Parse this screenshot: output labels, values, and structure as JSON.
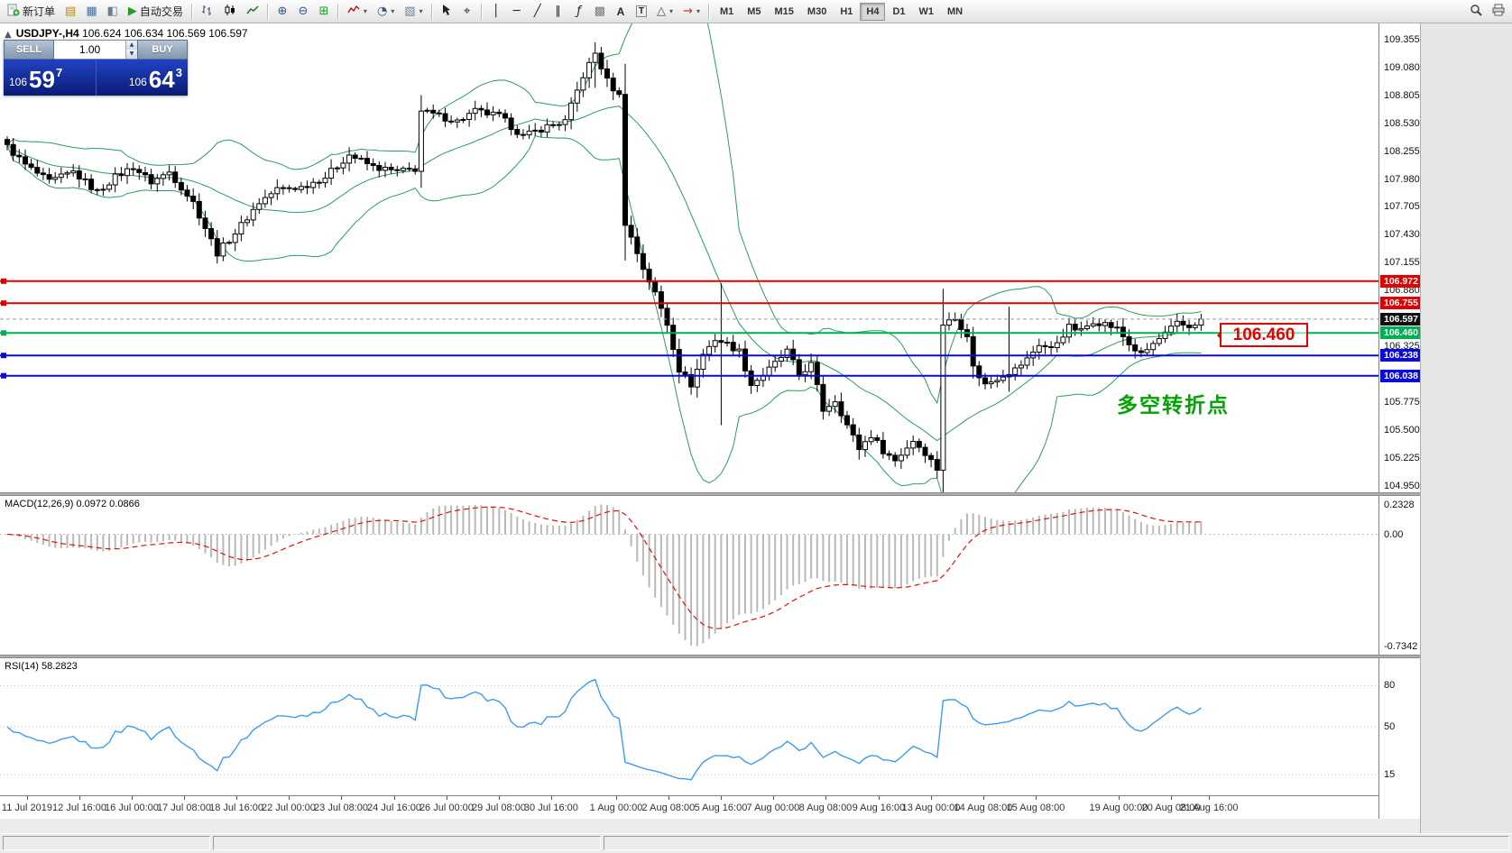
{
  "toolbar": {
    "new_order_label": "新订单",
    "autotrade_label": "自动交易",
    "text_tool_label": "A",
    "text_label_tool": "T",
    "timeframes": [
      "M1",
      "M5",
      "M15",
      "M30",
      "H1",
      "H4",
      "D1",
      "W1",
      "MN"
    ],
    "active_timeframe": "H4",
    "icons": {
      "market_watch": "▤",
      "chart_window": "▦",
      "navigator": "◧",
      "autoplay": "▶",
      "zoom_in": "⊕",
      "zoom_out": "⊖",
      "tile_windows": "⊞",
      "periods": "◔",
      "templates": "▧",
      "crosshair": "⌖",
      "vertical_line": "│",
      "horizontal_line": "─",
      "trendline": "╱",
      "channel": "∥",
      "fibonacci": "ƒ",
      "gann_grid": "▩",
      "shapes": "△",
      "arrows": "→",
      "caret": "▾"
    }
  },
  "one_click": {
    "sell_label": "SELL",
    "buy_label": "BUY",
    "volume": "1.00",
    "spin_up": "▲",
    "spin_down": "▼",
    "sell_price": {
      "small": "106",
      "big": "59",
      "sup": "7"
    },
    "buy_price": {
      "small": "106",
      "big": "64",
      "sup": "3"
    }
  },
  "chart": {
    "collapse_icon": "▲",
    "title_symbol": "USDJPY-,H4",
    "title_ohlc": "106.624 106.634 106.569 106.597",
    "current_price": "106.597",
    "annotation_box": "106.460",
    "annotation_note": "多空转折点",
    "axis_ticks": [
      "109.355",
      "109.080",
      "108.805",
      "108.530",
      "108.255",
      "107.980",
      "107.705",
      "107.430",
      "107.155",
      "106.880",
      "106.325",
      "105.775",
      "105.500",
      "105.225",
      "104.950"
    ],
    "price_tags": [
      {
        "label": "106.972",
        "color": "#e00000"
      },
      {
        "label": "106.755",
        "color": "#e00000"
      },
      {
        "label": "106.597",
        "color": "#101010"
      },
      {
        "label": "106.460",
        "color": "#00b050"
      },
      {
        "label": "106.238",
        "color": "#0a0ae0"
      },
      {
        "label": "106.038",
        "color": "#0a0ae0"
      }
    ],
    "hlines": [
      {
        "price": 106.972,
        "color": "#e00000",
        "w": 2
      },
      {
        "price": 106.755,
        "color": "#e00000",
        "w": 2
      },
      {
        "price": 106.46,
        "color": "#00b050",
        "w": 2
      },
      {
        "price": 106.238,
        "color": "#0a0ae0",
        "w": 2
      },
      {
        "price": 106.038,
        "color": "#0a0ae0",
        "w": 2
      }
    ],
    "time_labels": [
      {
        "t": "11 Jul 2019",
        "f": 0.0196
      },
      {
        "t": "12 Jul 16:00",
        "f": 0.0576
      },
      {
        "t": "16 Jul 00:00",
        "f": 0.0955
      },
      {
        "t": "17 Jul 08:00",
        "f": 0.1335
      },
      {
        "t": "18 Jul 16:00",
        "f": 0.1715
      },
      {
        "t": "22 Jul 00:00",
        "f": 0.2094
      },
      {
        "t": "23 Jul 08:00",
        "f": 0.2474
      },
      {
        "t": "24 Jul 16:00",
        "f": 0.286
      },
      {
        "t": "26 Jul 00:00",
        "f": 0.3239
      },
      {
        "t": "29 Jul 08:00",
        "f": 0.3619
      },
      {
        "t": "30 Jul 16:00",
        "f": 0.3998
      },
      {
        "t": "1 Aug 00:00",
        "f": 0.447
      },
      {
        "t": "2 Aug 08:00",
        "f": 0.4849
      },
      {
        "t": "5 Aug 16:00",
        "f": 0.5229
      },
      {
        "t": "7 Aug 00:00",
        "f": 0.5608
      },
      {
        "t": "8 Aug 08:00",
        "f": 0.5988
      },
      {
        "t": "9 Aug 16:00",
        "f": 0.6374
      },
      {
        "t": "13 Aug 00:00",
        "f": 0.6754
      },
      {
        "t": "14 Aug 08:00",
        "f": 0.7133
      },
      {
        "t": "15 Aug 08:00",
        "f": 0.7513
      },
      {
        "t": "19 Aug 00:00",
        "f": 0.8115
      },
      {
        "t": "20 Aug 08:00",
        "f": 0.8495
      },
      {
        "t": "21 Aug 16:00",
        "f": 0.877
      }
    ]
  },
  "macd": {
    "label": "MACD(12,26,9) 0.0972 0.0866",
    "axis": [
      "0.2328",
      "0.00",
      "-0.7342"
    ],
    "params": {
      "fast": 12,
      "slow": 26,
      "signal": 9
    }
  },
  "rsi": {
    "label": "RSI(14) 58.2823",
    "period": 14,
    "levels": [
      80,
      50,
      15
    ]
  },
  "colors": {
    "bull": "#ffffff",
    "bear": "#000000",
    "wick": "#000000",
    "bollinger": "#2d9c5a",
    "macd_hist": "#b9b9b9",
    "macd_signal": "#e01010",
    "rsi_line": "#3e9bf5",
    "grid_dotted": "#c0c0c0",
    "axis_text": "#111111"
  },
  "chart_data": {
    "type": "candlestick",
    "symbol": "USDJPY",
    "timeframe": "H4",
    "title": "USDJPY-,H4",
    "candle_count": 200,
    "last_close": 106.597,
    "price_range": [
      104.887,
      109.516
    ],
    "x_range": [
      "11 Jul 2019",
      "21 Aug 2019 16:00"
    ],
    "price_waypoints": [
      [
        0,
        108.3
      ],
      [
        3,
        108.12
      ],
      [
        7,
        107.95
      ],
      [
        11,
        108.05
      ],
      [
        15,
        107.85
      ],
      [
        18,
        108.0
      ],
      [
        21,
        108.1
      ],
      [
        24,
        107.95
      ],
      [
        27,
        108.05
      ],
      [
        31,
        107.75
      ],
      [
        35,
        107.25
      ],
      [
        38,
        107.45
      ],
      [
        42,
        107.75
      ],
      [
        45,
        107.88
      ],
      [
        49,
        107.9
      ],
      [
        53,
        108.0
      ],
      [
        57,
        108.22
      ],
      [
        61,
        108.1
      ],
      [
        65,
        108.05
      ],
      [
        68,
        108.08
      ],
      [
        69,
        108.65
      ],
      [
        72,
        108.6
      ],
      [
        75,
        108.55
      ],
      [
        78,
        108.65
      ],
      [
        82,
        108.6
      ],
      [
        86,
        108.4
      ],
      [
        90,
        108.5
      ],
      [
        93,
        108.55
      ],
      [
        96,
        109.0
      ],
      [
        98,
        109.22
      ],
      [
        100,
        108.95
      ],
      [
        102,
        108.8
      ],
      [
        103,
        107.55
      ],
      [
        105,
        107.25
      ],
      [
        106,
        107.1
      ],
      [
        108,
        106.85
      ],
      [
        110,
        106.55
      ],
      [
        112,
        106.1
      ],
      [
        114,
        105.95
      ],
      [
        116,
        106.25
      ],
      [
        118,
        106.4
      ],
      [
        120,
        106.35
      ],
      [
        122,
        106.28
      ],
      [
        124,
        105.95
      ],
      [
        127,
        106.1
      ],
      [
        130,
        106.28
      ],
      [
        132,
        106.05
      ],
      [
        134,
        106.15
      ],
      [
        136,
        105.7
      ],
      [
        138,
        105.8
      ],
      [
        140,
        105.55
      ],
      [
        142,
        105.32
      ],
      [
        144,
        105.45
      ],
      [
        146,
        105.3
      ],
      [
        148,
        105.2
      ],
      [
        151,
        105.4
      ],
      [
        153,
        105.28
      ],
      [
        155,
        105.12
      ],
      [
        156,
        106.55
      ],
      [
        158,
        106.6
      ],
      [
        160,
        106.45
      ],
      [
        161,
        106.12
      ],
      [
        163,
        105.95
      ],
      [
        166,
        106.05
      ],
      [
        168,
        106.1
      ],
      [
        170,
        106.2
      ],
      [
        172,
        106.35
      ],
      [
        174,
        106.3
      ],
      [
        177,
        106.52
      ],
      [
        179,
        106.48
      ],
      [
        181,
        106.58
      ],
      [
        183,
        106.55
      ],
      [
        185,
        106.5
      ],
      [
        187,
        106.35
      ],
      [
        189,
        106.24
      ],
      [
        191,
        106.35
      ],
      [
        193,
        106.45
      ],
      [
        195,
        106.55
      ],
      [
        197,
        106.52
      ],
      [
        199,
        106.597
      ]
    ],
    "spikes": [
      {
        "i": 69,
        "high": 108.72,
        "low": 108.02
      },
      {
        "i": 98,
        "high": 109.33,
        "low": 108.88
      },
      {
        "i": 103,
        "high": 108.85,
        "low": 107.4
      },
      {
        "i": 119,
        "high": 106.95,
        "low": 105.55
      },
      {
        "i": 156,
        "high": 106.88,
        "low": 105.05
      },
      {
        "i": 167,
        "high": 106.72,
        "low": 105.88
      }
    ],
    "indicators": {
      "bollinger": {
        "period": 20,
        "deviation": 2
      },
      "macd": {
        "fast": 12,
        "slow": 26,
        "signal": 9,
        "values": [
          0.0972,
          0.0866
        ],
        "axis_range": [
          -0.7342,
          0.2328
        ]
      },
      "rsi": {
        "period": 14,
        "value": 58.2823,
        "levels": [
          80,
          50,
          15
        ]
      }
    },
    "overlays": {
      "red_resistance_lines": [
        106.972,
        106.755
      ],
      "green_pivot_line": 106.46,
      "blue_support_lines": [
        106.238,
        106.038
      ],
      "note": "多空转折点"
    }
  }
}
